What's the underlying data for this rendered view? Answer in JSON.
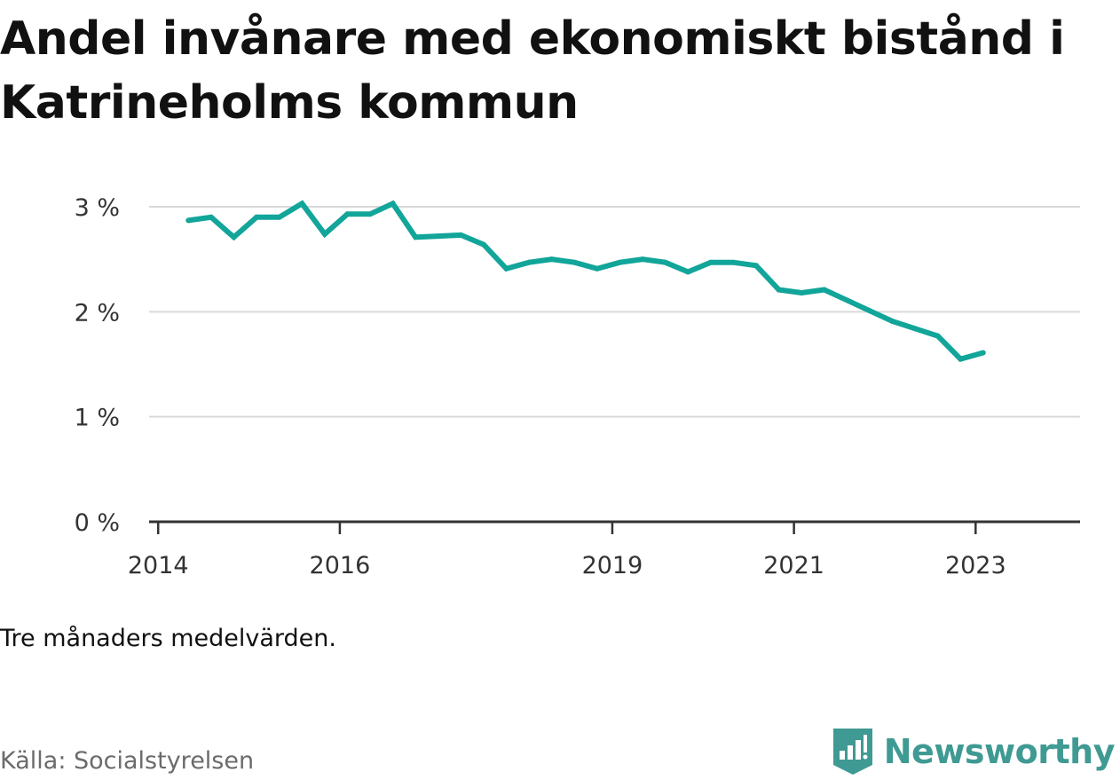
{
  "title": "Andel invånare med ekonomiskt bistånd i Katrineholms kommun",
  "note": "Tre månaders medelvärden.",
  "source": "Källa: Socialstyrelsen",
  "brand": {
    "name": "Newsworthy",
    "icon": "newsworthy-logo-icon",
    "color": "#3f9a93"
  },
  "colors": {
    "line": "#12a59a",
    "grid": "#d9d9d9",
    "axis": "#333333",
    "tick_text": "#333333"
  },
  "chart_data": {
    "type": "line",
    "title": "Andel invånare med ekonomiskt bistånd i Katrineholms kommun",
    "xlabel": "",
    "ylabel": "",
    "y_ticks": [
      0,
      1,
      2,
      3
    ],
    "y_tick_labels": [
      "0 %",
      "1 %",
      "2 %",
      "3 %"
    ],
    "ylim": [
      0,
      3
    ],
    "x_ticks": [
      2014,
      2016,
      2019,
      2021,
      2023
    ],
    "x_tick_labels": [
      "2014",
      "2016",
      "2019",
      "2021",
      "2023"
    ],
    "xlim": [
      2013.9,
      2024.15
    ],
    "grid": true,
    "series": [
      {
        "values": [
          {
            "x": "2014-05",
            "y": 2.87
          },
          {
            "x": "2014-08",
            "y": 2.9
          },
          {
            "x": "2014-11",
            "y": 2.71
          },
          {
            "x": "2015-02",
            "y": 2.9
          },
          {
            "x": "2015-05",
            "y": 2.9
          },
          {
            "x": "2015-08",
            "y": 3.03
          },
          {
            "x": "2015-11",
            "y": 2.74
          },
          {
            "x": "2016-02",
            "y": 2.93
          },
          {
            "x": "2016-05",
            "y": 2.93
          },
          {
            "x": "2016-08",
            "y": 3.03
          },
          {
            "x": "2016-11",
            "y": 2.71
          },
          {
            "x": "2017-02",
            "y": 2.72
          },
          {
            "x": "2017-05",
            "y": 2.73
          },
          {
            "x": "2017-08",
            "y": 2.64
          },
          {
            "x": "2017-11",
            "y": 2.41
          },
          {
            "x": "2018-02",
            "y": 2.47
          },
          {
            "x": "2018-05",
            "y": 2.5
          },
          {
            "x": "2018-08",
            "y": 2.47
          },
          {
            "x": "2018-11",
            "y": 2.41
          },
          {
            "x": "2019-02",
            "y": 2.47
          },
          {
            "x": "2019-05",
            "y": 2.5
          },
          {
            "x": "2019-08",
            "y": 2.47
          },
          {
            "x": "2019-11",
            "y": 2.38
          },
          {
            "x": "2020-02",
            "y": 2.47
          },
          {
            "x": "2020-05",
            "y": 2.47
          },
          {
            "x": "2020-08",
            "y": 2.44
          },
          {
            "x": "2020-11",
            "y": 2.21
          },
          {
            "x": "2021-02",
            "y": 2.18
          },
          {
            "x": "2021-05",
            "y": 2.21
          },
          {
            "x": "2021-08",
            "y": 2.11
          },
          {
            "x": "2021-11",
            "y": 2.01
          },
          {
            "x": "2022-02",
            "y": 1.91
          },
          {
            "x": "2022-05",
            "y": 1.84
          },
          {
            "x": "2022-08",
            "y": 1.77
          },
          {
            "x": "2022-11",
            "y": 1.55
          },
          {
            "x": "2023-02",
            "y": 1.61
          }
        ]
      }
    ]
  }
}
